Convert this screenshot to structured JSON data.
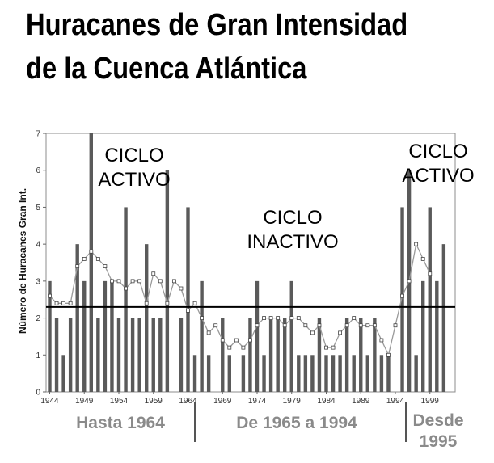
{
  "title_lines": [
    "Huracanes  de Gran Intensidad",
    "de la Cuenca Atlántica"
  ],
  "chart_data": {
    "type": "bar",
    "ylabel": "Número de Huracanes Gran Int.",
    "ylim": [
      0,
      7
    ],
    "yticks": [
      0,
      1,
      2,
      3,
      4,
      5,
      6,
      7
    ],
    "xtick_labels": [
      "1944",
      "1949",
      "1954",
      "1959",
      "1964",
      "1969",
      "1974",
      "1979",
      "1984",
      "1989",
      "1994",
      "1999"
    ],
    "x_start": 1944,
    "x_end": 2001,
    "grid": false,
    "series": [
      {
        "type": "bar",
        "x": [
          1944,
          1945,
          1946,
          1947,
          1948,
          1949,
          1950,
          1951,
          1952,
          1953,
          1954,
          1955,
          1956,
          1957,
          1958,
          1959,
          1960,
          1961,
          1962,
          1963,
          1964,
          1965,
          1966,
          1967,
          1968,
          1969,
          1970,
          1971,
          1972,
          1973,
          1974,
          1975,
          1976,
          1977,
          1978,
          1979,
          1980,
          1981,
          1982,
          1983,
          1984,
          1985,
          1986,
          1987,
          1988,
          1989,
          1990,
          1991,
          1992,
          1993,
          1994,
          1995,
          1996,
          1997,
          1998,
          1999,
          2000,
          2001
        ],
        "values": [
          3,
          2,
          1,
          2,
          4,
          3,
          7,
          2,
          3,
          3,
          2,
          5,
          2,
          2,
          4,
          2,
          2,
          6,
          0,
          2,
          5,
          1,
          3,
          1,
          0,
          2,
          1,
          0,
          1,
          2,
          3,
          1,
          2,
          2,
          2,
          3,
          1,
          1,
          1,
          2,
          1,
          1,
          1,
          2,
          1,
          2,
          1,
          2,
          1,
          1,
          0,
          5,
          6,
          1,
          3,
          5,
          3,
          4
        ]
      },
      {
        "type": "line",
        "name": "running average",
        "x": [
          1944,
          1945,
          1946,
          1947,
          1948,
          1949,
          1950,
          1951,
          1952,
          1953,
          1954,
          1955,
          1956,
          1957,
          1958,
          1959,
          1960,
          1961,
          1962,
          1963,
          1964,
          1965,
          1966,
          1967,
          1968,
          1969,
          1970,
          1971,
          1972,
          1973,
          1974,
          1975,
          1976,
          1977,
          1978,
          1979,
          1980,
          1981,
          1982,
          1983,
          1984,
          1985,
          1986,
          1987,
          1988,
          1989,
          1990,
          1991,
          1992,
          1993,
          1994,
          1995,
          1996,
          1997,
          1998,
          1999
        ],
        "values": [
          2.6,
          2.4,
          2.4,
          2.4,
          3.4,
          3.6,
          3.8,
          3.6,
          3.4,
          3.0,
          3.0,
          2.8,
          3.0,
          3.0,
          2.4,
          3.2,
          3.0,
          2.4,
          3.0,
          2.8,
          2.2,
          2.4,
          2.0,
          1.6,
          1.8,
          1.4,
          1.2,
          1.4,
          1.2,
          1.4,
          1.8,
          2.0,
          2.0,
          2.0,
          1.8,
          2.0,
          2.0,
          1.8,
          1.6,
          1.8,
          1.2,
          1.2,
          1.6,
          1.8,
          2.0,
          1.8,
          1.8,
          1.8,
          1.4,
          1.0,
          1.8,
          2.6,
          3.0,
          4.0,
          3.6,
          3.2
        ]
      },
      {
        "type": "hline",
        "name": "average",
        "value": 2.3
      }
    ],
    "annotations": [
      {
        "lines": [
          "CICLO",
          "ACTIVO"
        ]
      },
      {
        "lines": [
          "CICLO",
          "INACTIVO"
        ]
      },
      {
        "lines": [
          "CICLO",
          "ACTIVO"
        ]
      }
    ],
    "periods": [
      {
        "lines": [
          "Hasta 1964"
        ]
      },
      {
        "lines": [
          "De 1965 a 1994"
        ]
      },
      {
        "lines": [
          "Desde",
          "1995"
        ]
      }
    ]
  }
}
